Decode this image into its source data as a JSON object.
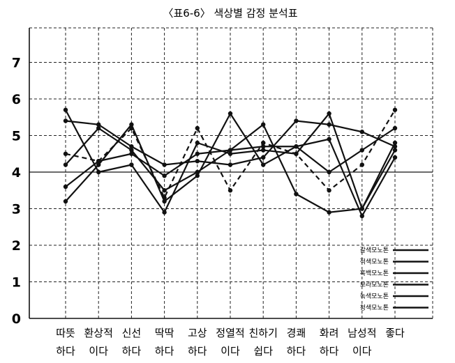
{
  "chart_data": {
    "type": "line",
    "title": "〈표6-6〉 색상별 감정 분석표",
    "categories": [
      [
        "따뜻",
        "하다"
      ],
      [
        "환상적",
        "이다"
      ],
      [
        "신선",
        "하다"
      ],
      [
        "딱딱",
        "하다"
      ],
      [
        "고상",
        "하다"
      ],
      [
        "정열적",
        "이다"
      ],
      [
        "친하기",
        "쉽다"
      ],
      [
        "경쾌",
        "하다"
      ],
      [
        "화려",
        "하다"
      ],
      [
        "남성적",
        "이다"
      ],
      [
        "좋다",
        ""
      ]
    ],
    "ylim": [
      0,
      8
    ],
    "yticks": [
      0,
      1,
      2,
      3,
      4,
      5,
      6,
      7
    ],
    "reference_line": 4,
    "grid": true,
    "legend_position": "bottom-right",
    "series": [
      {
        "name": "갈색모노톤",
        "values": [
          5.7,
          4.0,
          4.2,
          2.9,
          4.8,
          4.5,
          4.6,
          4.5,
          5.6,
          3.0,
          4.6
        ],
        "dash": false
      },
      {
        "name": "적색모노톤",
        "values": [
          5.4,
          5.3,
          4.7,
          4.2,
          4.3,
          4.2,
          4.4,
          5.4,
          5.3,
          5.1,
          4.7
        ],
        "dash": false
      },
      {
        "name": "흑백모노톤",
        "values": [
          4.5,
          4.3,
          5.2,
          3.3,
          5.2,
          3.5,
          4.8,
          4.5,
          3.5,
          4.2,
          5.7
        ],
        "dash": true
      },
      {
        "name": "보라모노톤",
        "values": [
          3.6,
          4.3,
          4.5,
          3.9,
          4.5,
          4.6,
          4.7,
          4.7,
          4.9,
          2.8,
          4.4
        ],
        "dash": false
      },
      {
        "name": "녹색모노톤",
        "values": [
          3.2,
          4.2,
          5.3,
          3.2,
          3.9,
          5.6,
          4.2,
          4.7,
          4.0,
          4.6,
          5.2
        ],
        "dash": false
      },
      {
        "name": "청색모노톤",
        "values": [
          4.2,
          5.2,
          4.6,
          3.5,
          4.0,
          4.6,
          5.3,
          3.4,
          2.9,
          3.0,
          4.8
        ],
        "dash": false
      }
    ]
  }
}
